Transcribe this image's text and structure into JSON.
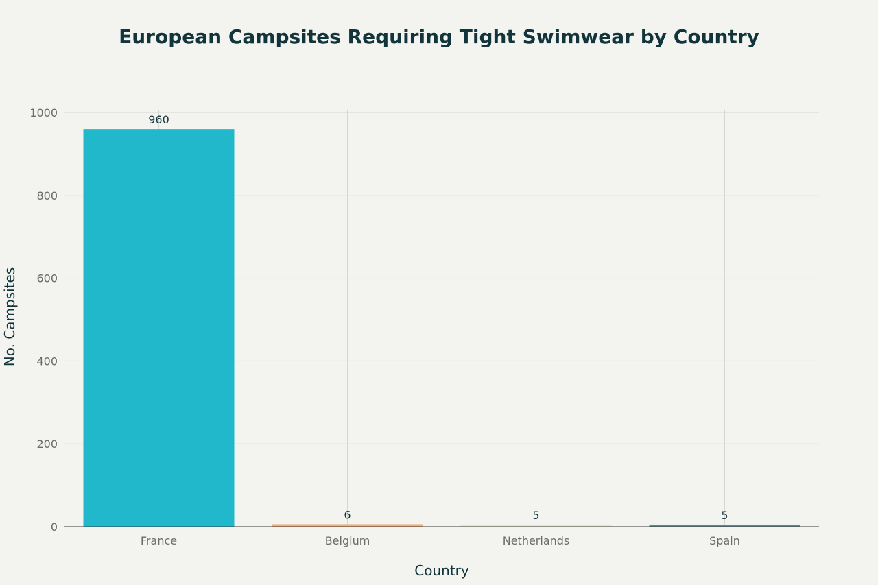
{
  "chart_data": {
    "type": "bar",
    "title": "European Campsites Requiring Tight Swimwear by Country",
    "xlabel": "Country",
    "ylabel": "No. Campsites",
    "categories": [
      "France",
      "Belgium",
      "Netherlands",
      "Spain"
    ],
    "values": [
      960,
      6,
      5,
      5
    ],
    "data_labels": [
      "960",
      "6",
      "5",
      "5"
    ],
    "colors": [
      "#21b8cc",
      "#f0b07a",
      "#e6e6cc",
      "#5d8a8f"
    ],
    "ylim": [
      0,
      1000
    ],
    "yticks": [
      0,
      200,
      400,
      600,
      800,
      1000
    ],
    "ytick_labels": [
      "0",
      "200",
      "400",
      "600",
      "800",
      "1000"
    ],
    "grid": true,
    "legend": "none"
  }
}
